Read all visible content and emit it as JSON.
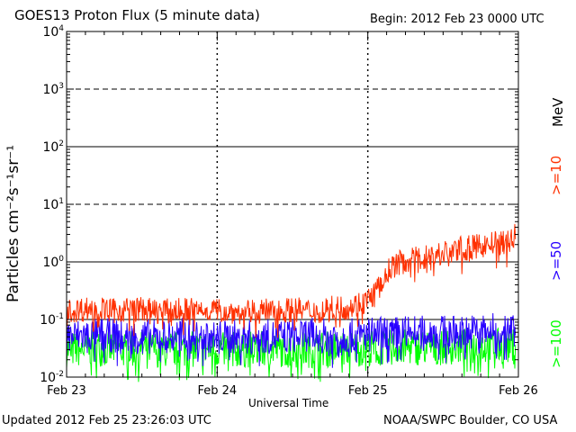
{
  "header": {
    "title": "GOES13 Proton Flux (5 minute data)",
    "begin": "Begin: 2012 Feb 23 0000 UTC"
  },
  "footer": {
    "updated": "Updated 2012 Feb 25 23:26:03 UTC",
    "credit": "NOAA/SWPC Boulder, CO USA"
  },
  "chart_data": {
    "type": "line",
    "title": "GOES13 Proton Flux (5 minute data)",
    "xlabel": "Universal Time",
    "ylabel": "Particles cm⁻²s⁻¹sr⁻¹",
    "yscale": "log",
    "ylim": [
      0.01,
      10000
    ],
    "xlim": [
      0,
      3
    ],
    "x_ticks": [
      {
        "x": 0,
        "label": "Feb 23"
      },
      {
        "x": 1,
        "label": "Feb 24"
      },
      {
        "x": 2,
        "label": "Feb 25"
      },
      {
        "x": 3,
        "label": "Feb 26"
      }
    ],
    "y_ticks": [
      {
        "value": 0.01,
        "base": "10",
        "exp": "-2"
      },
      {
        "value": 0.1,
        "base": "10",
        "exp": "-1"
      },
      {
        "value": 1,
        "base": "10",
        "exp": "0"
      },
      {
        "value": 10,
        "base": "10",
        "exp": "1"
      },
      {
        "value": 100,
        "base": "10",
        "exp": "2"
      },
      {
        "value": 1000,
        "base": "10",
        "exp": "3"
      },
      {
        "value": 10000,
        "base": "10",
        "exp": "4"
      }
    ],
    "threshold_lines": [
      10,
      1000
    ],
    "grid": true,
    "legend_unit": "MeV",
    "series": [
      {
        "name": ">=10",
        "color": "#ff3000",
        "x": [
          0,
          0.1,
          0.2,
          0.3,
          0.4,
          0.5,
          0.6,
          0.7,
          0.8,
          0.9,
          1.0,
          1.1,
          1.2,
          1.3,
          1.4,
          1.5,
          1.6,
          1.7,
          1.8,
          1.9,
          2.0,
          2.05,
          2.1,
          2.15,
          2.2,
          2.3,
          2.4,
          2.5,
          2.6,
          2.7,
          2.8,
          2.9,
          2.95,
          2.98
        ],
        "values": [
          0.14,
          0.15,
          0.16,
          0.14,
          0.15,
          0.15,
          0.14,
          0.14,
          0.15,
          0.15,
          0.15,
          0.14,
          0.13,
          0.14,
          0.14,
          0.15,
          0.14,
          0.15,
          0.16,
          0.17,
          0.22,
          0.3,
          0.45,
          0.8,
          0.95,
          1.1,
          1.25,
          1.45,
          1.65,
          1.8,
          2.0,
          2.2,
          2.5,
          2.9
        ]
      },
      {
        "name": ">=50",
        "color": "#2800ff",
        "x": [
          0,
          0.2,
          0.4,
          0.6,
          0.8,
          1.0,
          1.2,
          1.4,
          1.6,
          1.8,
          2.0,
          2.2,
          2.4,
          2.6,
          2.8,
          2.98
        ],
        "values": [
          0.05,
          0.055,
          0.05,
          0.05,
          0.055,
          0.05,
          0.05,
          0.05,
          0.055,
          0.05,
          0.055,
          0.06,
          0.06,
          0.06,
          0.065,
          0.065
        ]
      },
      {
        "name": ">=100",
        "color": "#00ff00",
        "x": [
          0,
          0.2,
          0.4,
          0.6,
          0.8,
          1.0,
          1.2,
          1.4,
          1.6,
          1.8,
          2.0,
          2.2,
          2.4,
          2.6,
          2.8,
          2.98
        ],
        "values": [
          0.03,
          0.032,
          0.03,
          0.031,
          0.03,
          0.03,
          0.03,
          0.031,
          0.03,
          0.031,
          0.032,
          0.033,
          0.033,
          0.034,
          0.034,
          0.035
        ]
      }
    ]
  }
}
